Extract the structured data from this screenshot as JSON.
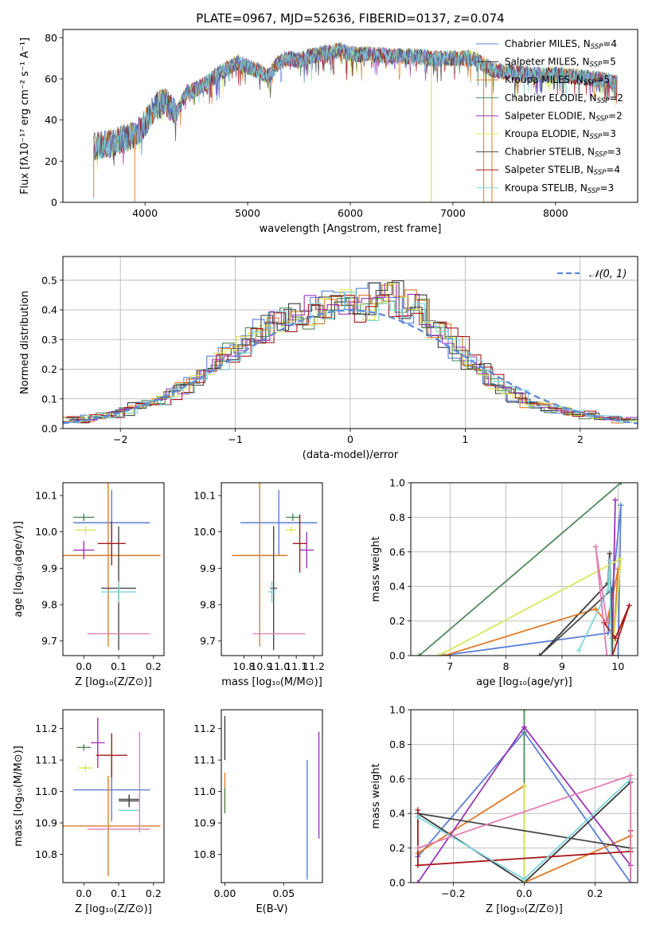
{
  "figure": {
    "title": "PLATE=0967, MJD=52636, FIBERID=0137, z=0.074"
  },
  "series_meta": [
    {
      "imf": "Chabrier",
      "lib": "MILES",
      "n": "4",
      "color": "#5b7fd6"
    },
    {
      "imf": "Salpeter",
      "lib": "MILES",
      "n": "5",
      "color": "#3a3a3a"
    },
    {
      "imf": "Kroupa",
      "lib": "MILES",
      "n": "5",
      "color": "#e07b28"
    },
    {
      "imf": "Chabrier",
      "lib": "ELODIE",
      "n": "2",
      "color": "#4f8a5a"
    },
    {
      "imf": "Salpeter",
      "lib": "ELODIE",
      "n": "2",
      "color": "#9b35b8"
    },
    {
      "imf": "Kroupa",
      "lib": "ELODIE",
      "n": "3",
      "color": "#d8e85a"
    },
    {
      "imf": "Chabrier",
      "lib": "STELIB",
      "n": "3",
      "color": "#4a4a4a"
    },
    {
      "imf": "Salpeter",
      "lib": "STELIB",
      "n": "4",
      "color": "#a8181c"
    },
    {
      "imf": "Kroupa",
      "lib": "STELIB",
      "n": "3",
      "color": "#7fd6dc"
    }
  ],
  "chart_data": [
    {
      "id": "spectrum",
      "type": "line",
      "xlabel": "wavelength [Angstrom, rest frame]",
      "ylabel": "Flux [fλ10⁻¹⁷ erg cm⁻² s⁻¹ A⁻¹]",
      "xlim": [
        3200,
        8800
      ],
      "ylim": [
        0,
        84
      ],
      "xticks": [
        4000,
        5000,
        6000,
        7000,
        8000
      ],
      "yticks": [
        0,
        20,
        40,
        60,
        80
      ],
      "legend": "right",
      "envelope": {
        "x": [
          3500,
          3600,
          3700,
          3800,
          3900,
          4000,
          4100,
          4200,
          4300,
          4400,
          4500,
          4600,
          4700,
          4800,
          4900,
          5000,
          5100,
          5200,
          5300,
          5400,
          5500,
          5600,
          5700,
          5800,
          5900,
          6000,
          6200,
          6400,
          6600,
          6800,
          7000,
          7200,
          7400,
          7600,
          7800,
          8000,
          8200,
          8400,
          8600
        ],
        "y": [
          27,
          28,
          29,
          31,
          33,
          38,
          47,
          49,
          43,
          53,
          55,
          58,
          62,
          65,
          68,
          66,
          64,
          61,
          68,
          70,
          69,
          71,
          72,
          73,
          74,
          72,
          72,
          71,
          71,
          70,
          70,
          70,
          64,
          63,
          62,
          62,
          61,
          60,
          58
        ]
      },
      "glitches": [
        {
          "x": 3500,
          "y": 2
        },
        {
          "x": 3900,
          "y": 0
        },
        {
          "x": 6790,
          "y": 0
        },
        {
          "x": 7300,
          "y": 0
        },
        {
          "x": 7380,
          "y": 0
        }
      ]
    },
    {
      "id": "residuals",
      "type": "line",
      "xlabel": "(data-model)/error",
      "ylabel": "Normed distribution",
      "xlim": [
        -2.5,
        2.5
      ],
      "ylim": [
        0,
        0.58
      ],
      "xticks": [
        -2,
        -1,
        0,
        1,
        2
      ],
      "yticks": [
        0.0,
        0.1,
        0.2,
        0.3,
        0.4,
        0.5
      ],
      "reference": {
        "name": "𝒩(0, 1)",
        "mu": 0,
        "sigma": 1,
        "color": "#5b8bd9"
      },
      "legend": "top-right",
      "hist_centers": [
        -2.45,
        -2.35,
        -2.25,
        -2.15,
        -2.05,
        -1.95,
        -1.85,
        -1.75,
        -1.65,
        -1.55,
        -1.45,
        -1.35,
        -1.25,
        -1.15,
        -1.05,
        -0.95,
        -0.85,
        -0.75,
        -0.65,
        -0.55,
        -0.45,
        -0.35,
        -0.25,
        -0.15,
        -0.05,
        0.05,
        0.15,
        0.25,
        0.35,
        0.45,
        0.55,
        0.65,
        0.75,
        0.85,
        0.95,
        1.05,
        1.15,
        1.25,
        1.35,
        1.45,
        1.55,
        1.65,
        1.75,
        1.85,
        1.95,
        2.05,
        2.15,
        2.25,
        2.35,
        2.45
      ],
      "hist_base": [
        0.03,
        0.03,
        0.035,
        0.04,
        0.05,
        0.06,
        0.07,
        0.085,
        0.1,
        0.12,
        0.14,
        0.16,
        0.19,
        0.22,
        0.25,
        0.28,
        0.31,
        0.33,
        0.36,
        0.38,
        0.39,
        0.4,
        0.41,
        0.41,
        0.41,
        0.42,
        0.43,
        0.44,
        0.44,
        0.43,
        0.42,
        0.39,
        0.35,
        0.31,
        0.27,
        0.23,
        0.19,
        0.16,
        0.13,
        0.11,
        0.09,
        0.08,
        0.07,
        0.06,
        0.05,
        0.045,
        0.04,
        0.035,
        0.03,
        0.03
      ]
    },
    {
      "id": "age-vs-Z",
      "type": "scatter",
      "xlabel": "Z [log₁₀(Z/Z⊙)]",
      "ylabel": "age  [log₁₀(age/yr)]",
      "xlim": [
        -0.06,
        0.23
      ],
      "ylim": [
        9.66,
        10.135
      ],
      "xticks": [
        0.0,
        0.1,
        0.2
      ],
      "yticks": [
        9.7,
        9.8,
        9.9,
        10.0,
        10.1
      ],
      "points": [
        {
          "x": 0.08,
          "y": 10.025,
          "xerr": 0.11,
          "yerr": 0.09
        },
        {
          "x": 0.0,
          "y": 10.0,
          "xerr": 0.0,
          "yerr": 0.0
        },
        {
          "x": 0.07,
          "y": 9.935,
          "xerr": 0.15,
          "yerr": 0.25
        },
        {
          "x": 0.0,
          "y": 10.04,
          "xerr": 0.03,
          "yerr": 0.01
        },
        {
          "x": 0.0,
          "y": 9.95,
          "xerr": 0.03,
          "yerr": 0.025
        },
        {
          "x": 0.005,
          "y": 10.005,
          "xerr": 0.03,
          "yerr": 0.01
        },
        {
          "x": 0.1,
          "y": 9.845,
          "xerr": 0.05,
          "yerr": 0.17
        },
        {
          "x": 0.08,
          "y": 9.968,
          "xerr": 0.04,
          "yerr": 0.06
        },
        {
          "x": 0.1,
          "y": 9.835,
          "xerr": 0.05,
          "yerr": 0.03
        },
        {
          "x": 0.1,
          "y": 9.72,
          "xerr": 0.09,
          "yerr": 0.0
        }
      ]
    },
    {
      "id": "age-vs-mass",
      "type": "scatter",
      "xlabel": "mass [log₁₀(M/M⊙)]",
      "ylabel": "",
      "xlim": [
        10.67,
        11.25
      ],
      "ylim": [
        9.66,
        10.135
      ],
      "xticks": [
        10.8,
        10.9,
        11.0,
        11.1,
        11.2
      ],
      "yticks": [
        9.7,
        9.8,
        9.9,
        10.0,
        10.1
      ],
      "points": [
        {
          "x": 11.0,
          "y": 10.025,
          "xerr": 0.22,
          "yerr": 0.09
        },
        {
          "x": 10.97,
          "y": 9.995,
          "xerr": 0.0,
          "yerr": 0.02
        },
        {
          "x": 10.89,
          "y": 9.935,
          "xerr": 0.16,
          "yerr": 0.25
        },
        {
          "x": 11.08,
          "y": 10.04,
          "xerr": 0.04,
          "yerr": 0.01
        },
        {
          "x": 11.16,
          "y": 9.95,
          "xerr": 0.04,
          "yerr": 0.05
        },
        {
          "x": 11.07,
          "y": 10.005,
          "xerr": 0.03,
          "yerr": 0.01
        },
        {
          "x": 10.97,
          "y": 9.845,
          "xerr": 0.02,
          "yerr": 0.17
        },
        {
          "x": 11.12,
          "y": 9.968,
          "xerr": 0.04,
          "yerr": 0.08
        },
        {
          "x": 10.96,
          "y": 9.835,
          "xerr": 0.02,
          "yerr": 0.03
        },
        {
          "x": 11.0,
          "y": 9.72,
          "xerr": 0.15,
          "yerr": 0.0
        }
      ]
    },
    {
      "id": "massweight-vs-age",
      "type": "line",
      "xlabel": "age  [log₁₀(age/yr)]",
      "ylabel": "mass weight",
      "xlim": [
        6.3,
        10.35
      ],
      "ylim": [
        0,
        1.0
      ],
      "xticks": [
        7,
        8,
        9,
        10
      ],
      "yticks": [
        0.0,
        0.2,
        0.4,
        0.6,
        0.8,
        1.0
      ],
      "series": [
        {
          "x": [
            6.85,
            9.82,
            10.05,
            10.0
          ],
          "y": [
            0.0,
            0.13,
            0.87,
            0.0
          ]
        },
        {
          "x": [
            8.6,
            9.82,
            9.85,
            9.9
          ],
          "y": [
            0.0,
            0.42,
            0.59,
            0.0
          ]
        },
        {
          "x": [
            6.9,
            9.6,
            9.8,
            10.0,
            9.9
          ],
          "y": [
            0.0,
            0.27,
            0.19,
            0.5,
            0.0
          ]
        },
        {
          "x": [
            6.45,
            10.05
          ],
          "y": [
            0.0,
            1.0
          ]
        },
        {
          "x": [
            9.95,
            9.9
          ],
          "y": [
            0.9,
            0.1
          ]
        },
        {
          "x": [
            6.8,
            10.05,
            9.9
          ],
          "y": [
            0.0,
            0.56,
            0.0
          ]
        },
        {
          "x": [
            8.6,
            9.88,
            9.9
          ],
          "y": [
            0.0,
            0.38,
            0.0
          ]
        },
        {
          "x": [
            9.75,
            9.95,
            10.2,
            9.9
          ],
          "y": [
            0.19,
            0.1,
            0.29,
            0.0
          ]
        },
        {
          "x": [
            9.3,
            9.82,
            9.85,
            9.88
          ],
          "y": [
            0.03,
            0.38,
            0.55,
            0.0
          ]
        },
        {
          "x": [
            9.8,
            9.6,
            9.8
          ],
          "y": [
            0.2,
            0.63,
            0.0
          ]
        }
      ]
    },
    {
      "id": "mass-vs-Z",
      "type": "scatter",
      "xlabel": "Z [log₁₀(Z/Z⊙)]",
      "ylabel": "mass [log₁₀(M/M⊙)]",
      "xlim": [
        -0.06,
        0.23
      ],
      "ylim": [
        10.71,
        11.26
      ],
      "xticks": [
        0.0,
        0.1,
        0.2
      ],
      "yticks": [
        10.8,
        10.9,
        11.0,
        11.1,
        11.2
      ],
      "points": [
        {
          "x": 0.08,
          "y": 11.005,
          "xerr": 0.11,
          "yerr": 0.1
        },
        {
          "x": 0.13,
          "y": 10.97,
          "xerr": 0.03,
          "yerr": 0.02
        },
        {
          "x": 0.07,
          "y": 10.89,
          "xerr": 0.15,
          "yerr": 0.16
        },
        {
          "x": 0.0,
          "y": 11.14,
          "xerr": 0.02,
          "yerr": 0.01
        },
        {
          "x": 0.04,
          "y": 11.155,
          "xerr": 0.02,
          "yerr": 0.08
        },
        {
          "x": 0.005,
          "y": 11.075,
          "xerr": 0.02,
          "yerr": 0.01
        },
        {
          "x": 0.13,
          "y": 10.975,
          "xerr": 0.03,
          "yerr": 0.0
        },
        {
          "x": 0.08,
          "y": 11.115,
          "xerr": 0.045,
          "yerr": 0.07
        },
        {
          "x": 0.13,
          "y": 10.94,
          "xerr": 0.03,
          "yerr": 0.0
        },
        {
          "x": 0.1,
          "y": 10.88,
          "xerr": 0.09,
          "yerr": 0.0
        },
        {
          "x": 0.16,
          "y": 11.03,
          "xerr": 0.0,
          "yerr": 0.16
        }
      ]
    },
    {
      "id": "mass-vs-EBV",
      "type": "scatter",
      "xlabel": "E(B-V)",
      "ylabel": "",
      "xlim": [
        -0.003,
        0.083
      ],
      "ylim": [
        10.71,
        11.26
      ],
      "xticks": [
        0.0,
        0.05
      ],
      "yticks": [
        10.8,
        10.9,
        11.0,
        11.1,
        11.2
      ],
      "points": [
        {
          "x": 0.07,
          "y": 10.91,
          "xerr": 0.0,
          "yerr": 0.19
        },
        {
          "x": 0.0,
          "y": 11.17,
          "xerr": 0.0,
          "yerr": 0.07
        },
        {
          "x": 0.0,
          "y": 11.0,
          "xerr": 0.0,
          "yerr": 0.06
        },
        {
          "x": 0.0,
          "y": 10.97,
          "xerr": 0.0,
          "yerr": 0.04
        },
        {
          "x": 0.08,
          "y": 11.02,
          "xerr": 0.0,
          "yerr": 0.17
        }
      ]
    },
    {
      "id": "massweight-vs-Z",
      "type": "line",
      "xlabel": "Z [log₁₀(Z/Z⊙)]",
      "ylabel": "mass weight",
      "xlim": [
        -0.32,
        0.32
      ],
      "ylim": [
        0,
        1.0
      ],
      "xticks": [
        -0.2,
        0.0,
        0.2
      ],
      "yticks": [
        0.0,
        0.2,
        0.4,
        0.6,
        0.8,
        1.0
      ],
      "series": [
        {
          "x": [
            -0.3,
            0.0,
            0.3
          ],
          "y": [
            0.15,
            0.87,
            0.0
          ]
        },
        {
          "x": [
            -0.3,
            0.0,
            0.3
          ],
          "y": [
            0.4,
            0.0,
            0.58
          ]
        },
        {
          "x": [
            -0.3,
            0.0,
            0.0,
            0.3,
            0.3
          ],
          "y": [
            0.17,
            0.56,
            0.0,
            0.27,
            0.0
          ]
        },
        {
          "x": [
            0.0,
            0.0
          ],
          "y": [
            1.0,
            0.0
          ]
        },
        {
          "x": [
            -0.3,
            0.0,
            0.3,
            0.3
          ],
          "y": [
            0.0,
            0.9,
            0.1,
            0.0
          ]
        },
        {
          "x": [
            0.0,
            0.0
          ],
          "y": [
            0.56,
            0.0
          ]
        },
        {
          "x": [
            -0.3,
            0.3
          ],
          "y": [
            0.4,
            0.2
          ]
        },
        {
          "x": [
            -0.3,
            -0.3,
            0.3,
            0.3
          ],
          "y": [
            0.42,
            0.1,
            0.18,
            0.3
          ]
        },
        {
          "x": [
            -0.3,
            0.0,
            0.3
          ],
          "y": [
            0.38,
            0.02,
            0.6
          ]
        },
        {
          "x": [
            -0.3,
            0.3,
            0.3
          ],
          "y": [
            0.2,
            0.62,
            0.0
          ]
        }
      ]
    }
  ]
}
